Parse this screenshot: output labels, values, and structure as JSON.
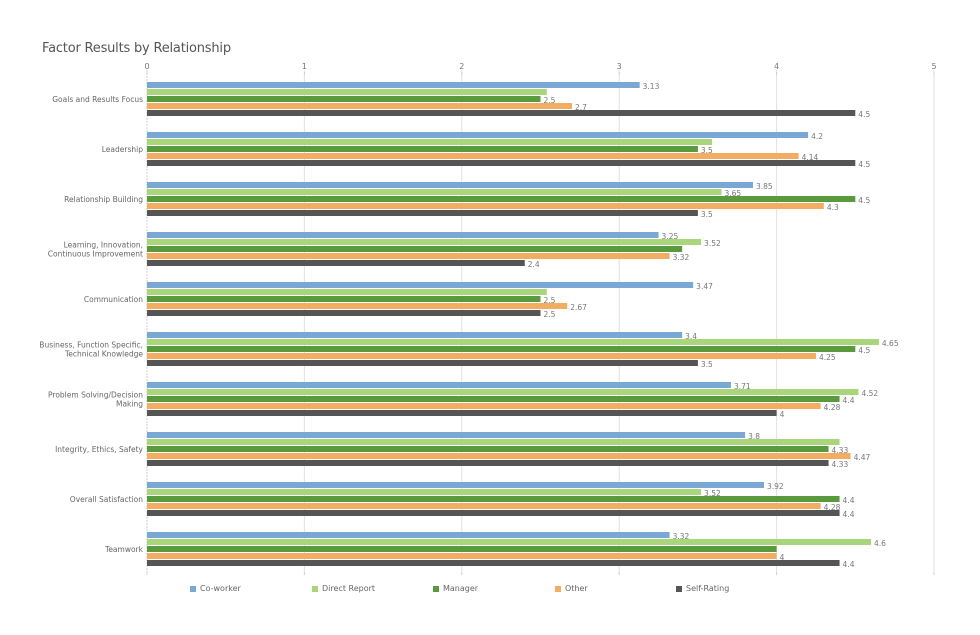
{
  "chart_data": {
    "type": "bar",
    "orientation": "horizontal",
    "title": "Factor Results by Relationship",
    "xlabel": "",
    "ylabel": "",
    "xlim": [
      0,
      5
    ],
    "x_ticks": [
      "0",
      "1",
      "2",
      "3",
      "4",
      "5"
    ],
    "grid": true,
    "legend_position": "bottom",
    "categories": [
      [
        "Goals and Results Focus"
      ],
      [
        "Leadership"
      ],
      [
        "Relationship Building"
      ],
      [
        "Learning, Innovation,",
        "Continuous Improvement"
      ],
      [
        "Communication"
      ],
      [
        "Business, Function Specific,",
        "Technical Knowledge"
      ],
      [
        "Problem Solving/Decision",
        "Making"
      ],
      [
        "Integrity, Ethics, Safety"
      ],
      [
        "Overall Satisfaction"
      ],
      [
        "Teamwork"
      ]
    ],
    "series": [
      {
        "name": "Co-worker",
        "color": "#7aa8d4",
        "values": [
          3.13,
          4.2,
          3.85,
          3.25,
          3.47,
          3.4,
          3.71,
          3.8,
          3.92,
          3.32
        ],
        "labels": [
          "3.13",
          "4.2",
          "3.85",
          "3.25",
          "3.47",
          "3.4",
          "3.71",
          "3.8",
          "3.92",
          "3.32"
        ]
      },
      {
        "name": "Direct Report",
        "color": "#a9d67a",
        "values": [
          2.54,
          3.59,
          3.65,
          3.52,
          2.54,
          4.65,
          4.52,
          4.4,
          3.52,
          4.6
        ],
        "labels": [
          "",
          "",
          "3.65",
          "3.52",
          "",
          "4.65",
          "4.52",
          "",
          "3.52",
          "4.6"
        ]
      },
      {
        "name": "Manager",
        "color": "#5a9a3e",
        "values": [
          2.5,
          3.5,
          4.5,
          3.4,
          2.5,
          4.5,
          4.4,
          4.33,
          4.4,
          4.0
        ],
        "labels": [
          "2.5",
          "3.5",
          "4.5",
          "",
          "2.5",
          "4.5",
          "4.4",
          "4.33",
          "4.4",
          ""
        ]
      },
      {
        "name": "Other",
        "color": "#f2ad62",
        "values": [
          2.7,
          4.14,
          4.3,
          3.32,
          2.67,
          4.25,
          4.28,
          4.47,
          4.28,
          4.0
        ],
        "labels": [
          "2.7",
          "4.14",
          "4.3",
          "3.32",
          "2.67",
          "4.25",
          "4.28",
          "4.47",
          "4.28",
          "4"
        ]
      },
      {
        "name": "Self-Rating",
        "color": "#555555",
        "values": [
          4.5,
          4.5,
          3.5,
          2.4,
          2.5,
          3.5,
          4.0,
          4.33,
          4.4,
          4.4
        ],
        "labels": [
          "4.5",
          "4.5",
          "3.5",
          "2.4",
          "2.5",
          "3.5",
          "4",
          "4.33",
          "4.4",
          "4.4"
        ]
      }
    ]
  }
}
